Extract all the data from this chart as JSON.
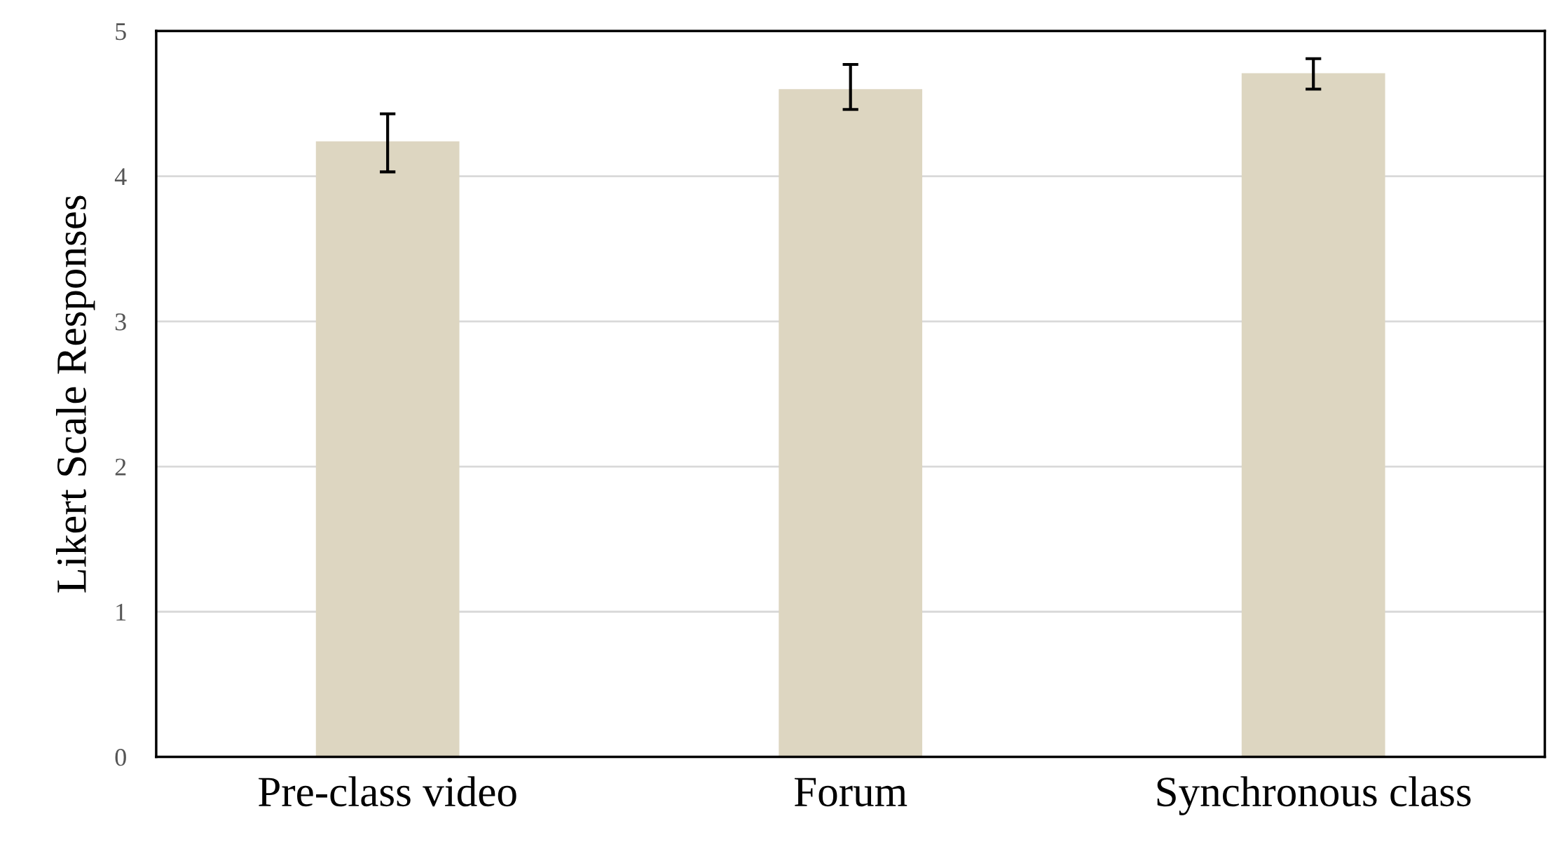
{
  "chart_data": {
    "type": "bar",
    "ylabel": "Likert Scale Responses",
    "categories": [
      "Pre-class video",
      "Forum",
      "Synchronous class"
    ],
    "values": [
      4.24,
      4.6,
      4.71
    ],
    "errors": [
      [
        4.03,
        4.43
      ],
      [
        4.46,
        4.77
      ],
      [
        4.6,
        4.81
      ]
    ],
    "color": "#ddd6c1",
    "ylim": [
      0,
      5
    ],
    "yticks": [
      0,
      1,
      2,
      3,
      4,
      5
    ],
    "grid": "y"
  }
}
